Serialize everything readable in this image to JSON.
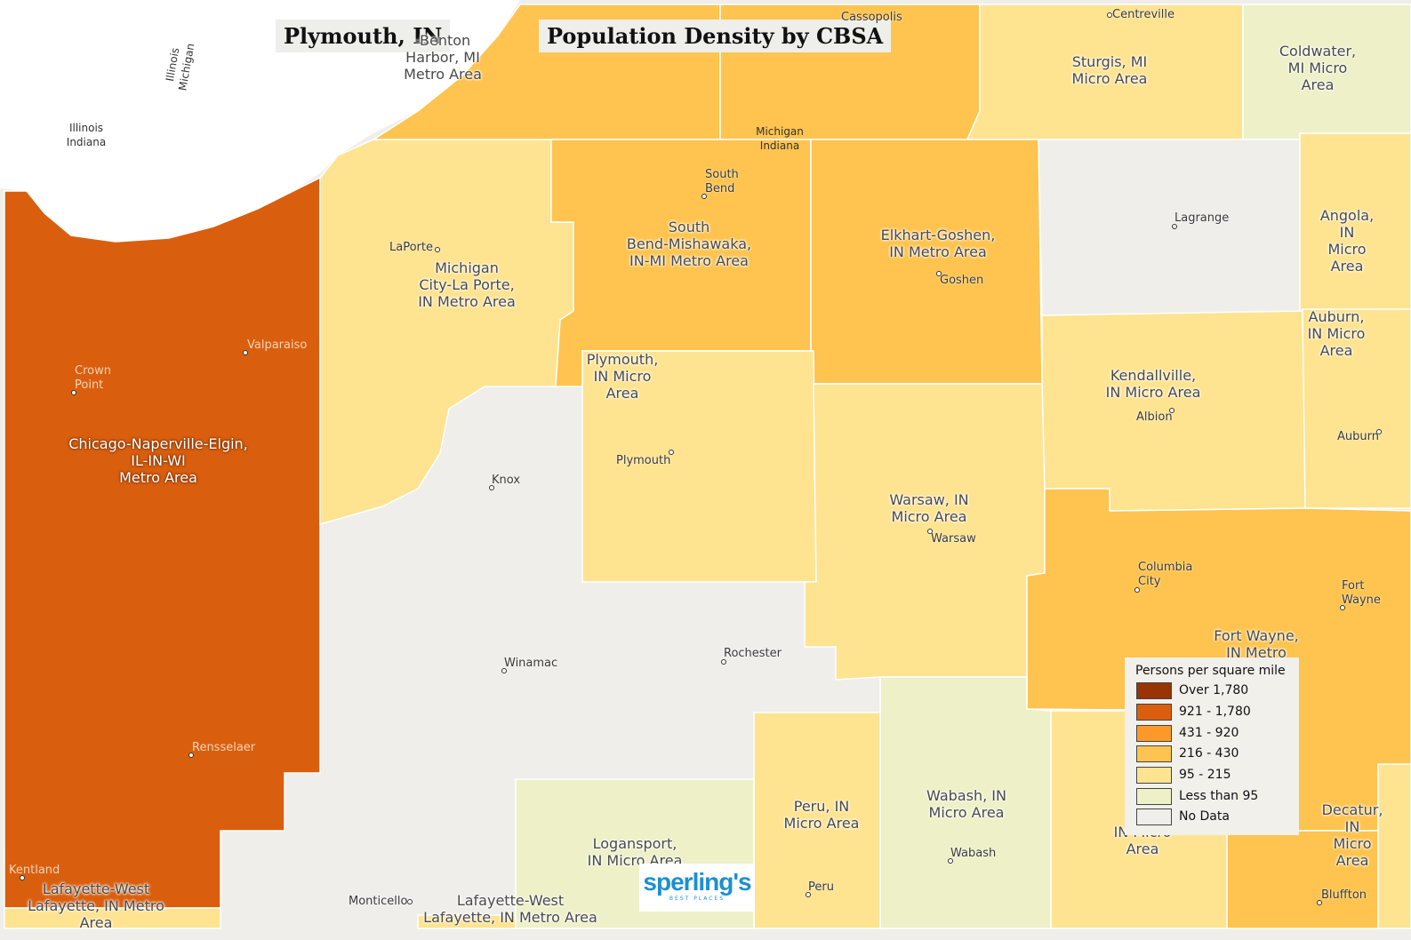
{
  "titles": {
    "place": "Plymouth, IN",
    "map_title": "Population Density by CBSA"
  },
  "colors": {
    "over_1780": "#993404",
    "r921_1780": "#d95f0e",
    "r431_920": "#fe9929",
    "r216_430": "#fec44f",
    "r95_215": "#fee391",
    "less_95": "#eef0c8",
    "no_data": "#f0eeea"
  },
  "areas": [
    {
      "name": "Chicago-Naperville-Elgin,\nIL-IN-WI\nMetro Area",
      "density": "921 - 1,780"
    },
    {
      "name": "Michigan\nCity-La Porte,\nIN Metro Area",
      "density": "95 - 215"
    },
    {
      "name": "South\nBend-Mishawaka,\nIN-MI Metro Area",
      "density": "216 - 430"
    },
    {
      "name": "Elkhart-Goshen,\nIN Metro Area",
      "density": "216 - 430"
    },
    {
      "name": "Plymouth,\nIN Micro\nArea",
      "density": "95 - 215"
    },
    {
      "name": "Warsaw, IN\nMicro Area",
      "density": "95 - 215"
    },
    {
      "name": "Kendallville,\nIN Micro Area",
      "density": "95 - 215"
    },
    {
      "name": "Sturgis, MI\nMicro Area",
      "density": "95 - 215"
    },
    {
      "name": "Coldwater,\nMI Micro\nArea",
      "density": "Less than 95"
    },
    {
      "name": "Angola, IN\nMicro Area",
      "density": "95 - 215"
    },
    {
      "name": "Auburn,\nIN Micro\nArea",
      "density": "95 - 215"
    },
    {
      "name": "Fort Wayne,\nIN Metro",
      "density": "216 - 430"
    },
    {
      "name": "Wabash, IN\nMicro Area",
      "density": "Less than 95"
    },
    {
      "name": "Peru, IN\nMicro Area",
      "density": "95 - 215"
    },
    {
      "name": "Logansport,\nIN Micro Area",
      "density": "Less than 95"
    },
    {
      "name": "Lafayette-West\nLafayette, IN Metro Area",
      "density": "95 - 215"
    },
    {
      "name": "Lafayette-West\nLafayette, IN Metro\nArea",
      "density": "95 - 215"
    },
    {
      "name": "Decatur, IN\nMicro Area",
      "density": "95 - 215"
    },
    {
      "name": "Hu\nIN Micro\nArea",
      "density": "95 - 215"
    },
    {
      "name": "-Benton\nHarbor, MI\nMetro Area",
      "density": "216 - 430"
    }
  ],
  "cities": [
    "LaPorte",
    "Valparaiso",
    "Crown\nPoint",
    "South\nBend",
    "Goshen",
    "Lagrange",
    "Albion",
    "Auburn",
    "Plymouth",
    "Knox",
    "Warsaw",
    "Columbia\nCity",
    "Fort\nWayne",
    "Winamac",
    "Rochester",
    "Rensselaer",
    "Kentland",
    "Monticello",
    "Peru",
    "Wabash",
    "Bluffton",
    "Centreville",
    "Cassopolis"
  ],
  "borders": [
    "Illinois\nIndiana",
    "Illinois\nMichigan",
    "Michigan\nIndiana"
  ],
  "legend": {
    "title": "Persons per square mile",
    "items": [
      {
        "label": "Over 1,780",
        "color": "#993404"
      },
      {
        "label": "921 - 1,780",
        "color": "#d95f0e"
      },
      {
        "label": "431 - 920",
        "color": "#fe9929"
      },
      {
        "label": "216 - 430",
        "color": "#fec44f"
      },
      {
        "label": "95 - 215",
        "color": "#fee391"
      },
      {
        "label": "Less than 95",
        "color": "#eef0c8"
      },
      {
        "label": "No Data",
        "color": "#f0eeea"
      }
    ]
  },
  "logo": {
    "word": "sperling's",
    "sub": "BEST PLACES"
  }
}
